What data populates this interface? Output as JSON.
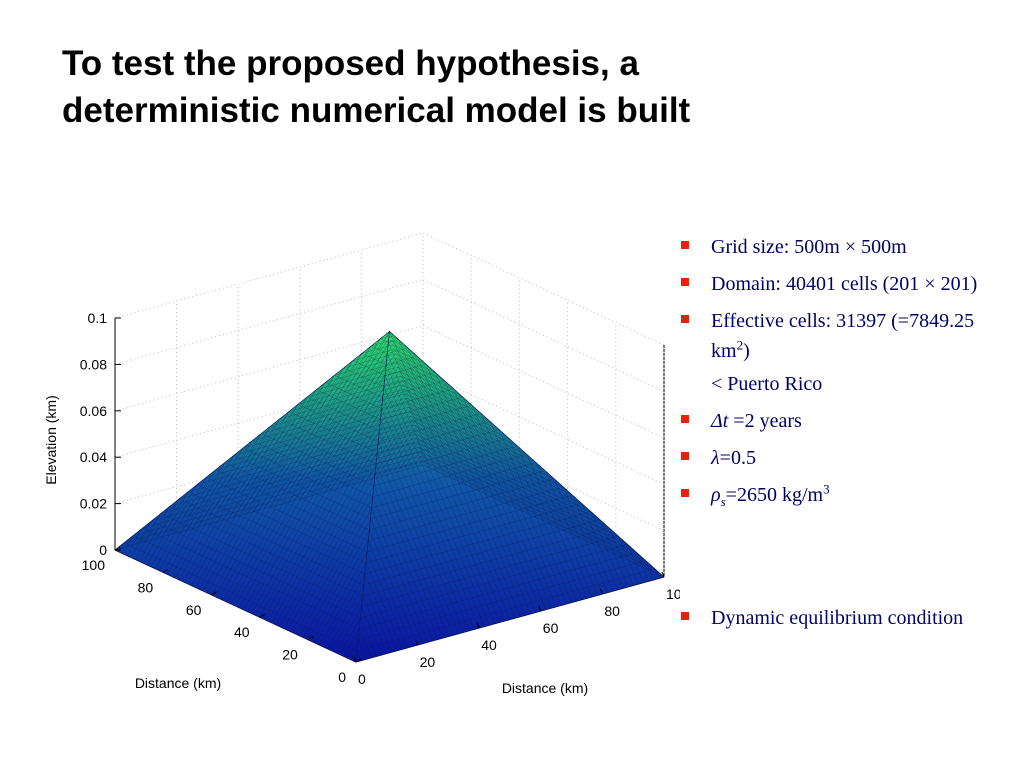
{
  "title": {
    "line1": "To test the proposed hypothesis, a",
    "line2": "deterministic numerical model is built"
  },
  "bullets": [
    {
      "text": "Grid size: 500m × 500m"
    },
    {
      "text": "Domain: 40401 cells (201 × 201)"
    },
    {
      "pre": "Effective cells: 31397 (=7849.25 km",
      "sup": "2",
      "post": ")"
    },
    {
      "text": "< Puerto Rico"
    },
    {
      "sym": "Δt",
      "post": " =2 years"
    },
    {
      "sym": "λ",
      "post": "=0.5"
    },
    {
      "sym": "ρ",
      "sub": "s",
      "post": "=2650 kg/m",
      "sup": "3"
    },
    {
      "text": "Dynamic equilibrium condition"
    }
  ],
  "colors": {
    "bullet_marker": "#e8220a",
    "bullet_text": "#000066",
    "surface_low": "#0a14a0",
    "surface_high": "#2ee068"
  },
  "chart_data": {
    "type": "surface3d",
    "title": "",
    "xlabel": "Distance (km)",
    "ylabel": "Distance (km)",
    "zlabel": "Elevation (km)",
    "xlim": [
      0,
      100
    ],
    "ylim": [
      0,
      100
    ],
    "zlim": [
      0,
      0.1
    ],
    "x_ticks": [
      "0",
      "20",
      "40",
      "60",
      "80",
      "100"
    ],
    "y_ticks": [
      "0",
      "20",
      "40",
      "60",
      "80",
      "100"
    ],
    "z_ticks": [
      "0",
      "0.02",
      "0.04",
      "0.06",
      "0.08",
      "0.1"
    ],
    "grid": true,
    "colormap": "blue-to-green",
    "surface": {
      "shape": "pyramid",
      "peak_x": 50,
      "peak_y": 50,
      "peak_z": 0.1,
      "edge_z": 0,
      "grid_cells": "201 x 201"
    }
  }
}
